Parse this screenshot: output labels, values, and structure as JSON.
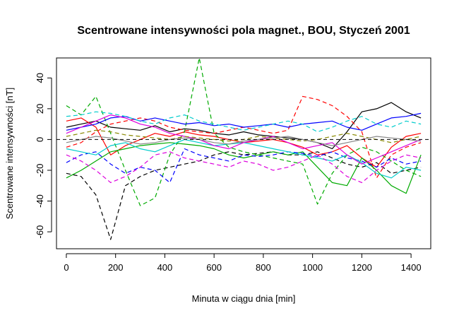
{
  "chart_data": {
    "type": "line",
    "title": "Scentrowane intensywności pola magnet., BOU, Styczeń 2001",
    "xlabel": "Minuta w ciągu dnia [min]",
    "ylabel": "Scentrowane intensywności [nT]",
    "xlim": [
      -40,
      1480
    ],
    "ylim": [
      -71,
      53
    ],
    "xticks": [
      0,
      200,
      400,
      600,
      800,
      1000,
      1200,
      1400
    ],
    "yticks": [
      -60,
      -40,
      -20,
      0,
      20,
      40
    ],
    "reference_line": 0,
    "grid": false,
    "legend": "none",
    "x": [
      0,
      60,
      120,
      180,
      240,
      300,
      360,
      420,
      480,
      540,
      600,
      660,
      720,
      780,
      840,
      900,
      960,
      1020,
      1080,
      1140,
      1200,
      1260,
      1320,
      1380,
      1440
    ],
    "series": [
      {
        "color": "#000000",
        "dash": "0",
        "values": [
          8,
          10,
          12,
          8,
          7,
          6,
          9,
          5,
          7,
          6,
          4,
          3,
          5,
          3,
          2,
          1,
          0,
          -2,
          -6,
          5,
          18,
          20,
          24,
          18,
          14
        ]
      },
      {
        "color": "#000000",
        "dash": "6,4",
        "values": [
          -22,
          -24,
          -36,
          -65,
          -30,
          -24,
          -20,
          -18,
          -16,
          -14,
          -10,
          -8,
          -10,
          -9,
          -8,
          -10,
          -10,
          -8,
          -12,
          -16,
          -18,
          -15,
          -22,
          -20,
          -18
        ]
      },
      {
        "color": "#ff0000",
        "dash": "0",
        "values": [
          12,
          14,
          8,
          -10,
          -4,
          0,
          4,
          2,
          5,
          3,
          2,
          0,
          -2,
          -1,
          0,
          -2,
          -5,
          -10,
          -8,
          -4,
          -12,
          -18,
          -5,
          2,
          4
        ]
      },
      {
        "color": "#ff0000",
        "dash": "6,4",
        "values": [
          -5,
          -2,
          5,
          10,
          12,
          14,
          12,
          8,
          6,
          5,
          4,
          6,
          8,
          6,
          4,
          6,
          28,
          26,
          22,
          15,
          5,
          -25,
          -10,
          -5,
          -2
        ]
      },
      {
        "color": "#00aa00",
        "dash": "0",
        "values": [
          -25,
          -20,
          -14,
          -8,
          -6,
          -4,
          -3,
          -2,
          -3,
          -4,
          -6,
          -10,
          -12,
          -10,
          -8,
          -10,
          -8,
          -18,
          -28,
          -30,
          -12,
          -20,
          -30,
          -35,
          -10
        ]
      },
      {
        "color": "#00aa00",
        "dash": "6,4",
        "values": [
          22,
          16,
          28,
          4,
          -20,
          -43,
          -38,
          -10,
          5,
          53,
          4,
          -5,
          -8,
          -10,
          -12,
          -14,
          -16,
          -42,
          -22,
          -10,
          -5,
          -8,
          -14,
          -20,
          -24
        ]
      },
      {
        "color": "#0000ff",
        "dash": "0",
        "values": [
          6,
          8,
          10,
          14,
          15,
          12,
          14,
          12,
          10,
          11,
          9,
          10,
          8,
          9,
          10,
          8,
          10,
          11,
          12,
          8,
          6,
          10,
          14,
          15,
          17
        ]
      },
      {
        "color": "#0000ff",
        "dash": "6,4",
        "values": [
          -15,
          -10,
          -8,
          -16,
          -22,
          -18,
          -20,
          -28,
          -6,
          -10,
          -12,
          -14,
          -10,
          -11,
          -10,
          -8,
          -9,
          -11,
          -8,
          -12,
          -14,
          -18,
          -12,
          -16,
          -14
        ]
      },
      {
        "color": "#00cccc",
        "dash": "0",
        "values": [
          -6,
          -8,
          -10,
          -4,
          -2,
          -6,
          -8,
          -4,
          0,
          -2,
          -4,
          -3,
          -2,
          -4,
          -6,
          -8,
          -10,
          -12,
          -14,
          -10,
          -15,
          -22,
          -25,
          -18,
          -20
        ]
      },
      {
        "color": "#00cccc",
        "dash": "6,4",
        "values": [
          15,
          16,
          18,
          17,
          15,
          12,
          10,
          14,
          16,
          12,
          10,
          8,
          6,
          8,
          10,
          12,
          10,
          5,
          8,
          12,
          15,
          10,
          8,
          12,
          10
        ]
      },
      {
        "color": "#dd00dd",
        "dash": "0",
        "values": [
          4,
          8,
          12,
          16,
          14,
          10,
          8,
          4,
          2,
          0,
          -4,
          -6,
          -2,
          0,
          2,
          -2,
          -6,
          -4,
          -2,
          -10,
          -16,
          -12,
          -8,
          -4,
          0
        ]
      },
      {
        "color": "#dd00dd",
        "dash": "6,4",
        "values": [
          -10,
          -14,
          -20,
          -28,
          -24,
          -18,
          -10,
          -8,
          -12,
          -14,
          -16,
          -18,
          -14,
          -16,
          -20,
          -18,
          -14,
          -10,
          -16,
          -24,
          -28,
          -20,
          -14,
          -10,
          -12
        ]
      },
      {
        "color": "#888800",
        "dash": "6,4",
        "values": [
          2,
          4,
          6,
          5,
          3,
          2,
          1,
          0,
          2,
          1,
          0,
          -1,
          0,
          2,
          1,
          0,
          -1,
          0,
          2,
          4,
          2,
          0,
          -2,
          0,
          2
        ]
      },
      {
        "color": "#888888",
        "dash": "0",
        "values": [
          -2,
          0,
          2,
          1,
          -1,
          -3,
          -2,
          0,
          1,
          0,
          -2,
          -3,
          -1,
          0,
          1,
          2,
          0,
          -2,
          -4,
          -2,
          0,
          2,
          1,
          0,
          -1
        ]
      }
    ]
  }
}
